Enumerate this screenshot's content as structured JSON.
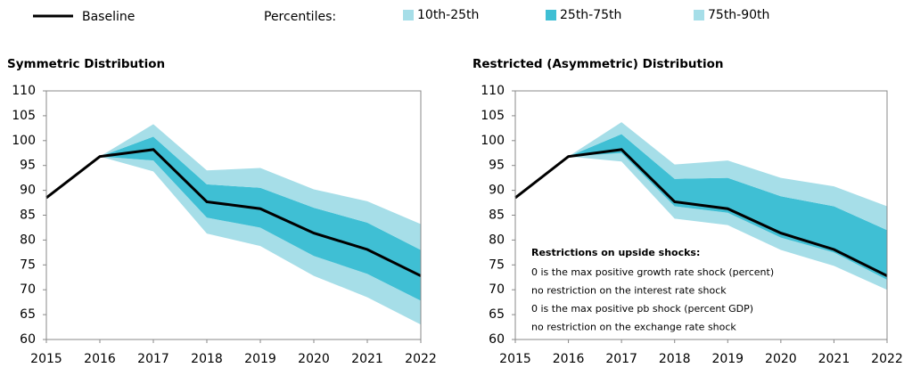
{
  "chart_data": [
    {
      "type": "fan",
      "title": "Symmetric Distribution",
      "legend_group_label": "Percentiles:",
      "x": [
        2015,
        2016,
        2017,
        2018,
        2019,
        2020,
        2021,
        2022
      ],
      "xlim": [
        2015,
        2022
      ],
      "xticks": [
        2015,
        2016,
        2017,
        2018,
        2019,
        2020,
        2021,
        2022
      ],
      "ylim": [
        60,
        110
      ],
      "yticks": [
        60,
        65,
        70,
        75,
        80,
        85,
        90,
        95,
        100,
        105,
        110
      ],
      "series": [
        {
          "name": "Baseline",
          "color": "#000000",
          "values": [
            88.5,
            96.8,
            98.2,
            87.7,
            86.3,
            81.4,
            78.1,
            72.8
          ]
        },
        {
          "name": "10th-25th",
          "color": "#a6dee8",
          "lower": [
            null,
            96.8,
            93.8,
            81.3,
            78.8,
            72.8,
            68.5,
            63
          ],
          "upper": [
            null,
            96.8,
            96,
            84.5,
            82.5,
            76.8,
            73.2,
            67.8
          ]
        },
        {
          "name": "25th-75th",
          "color": "#3fbfd4",
          "lower": [
            null,
            96.8,
            96,
            84.5,
            82.5,
            76.8,
            73.2,
            67.8
          ],
          "upper": [
            null,
            96.8,
            100.8,
            91.2,
            90.5,
            86.5,
            83.5,
            78
          ]
        },
        {
          "name": "75th-90th",
          "color": "#a6dee8",
          "lower": [
            null,
            96.8,
            100.8,
            91.2,
            90.5,
            86.5,
            83.5,
            78
          ],
          "upper": [
            null,
            96.8,
            103.3,
            94,
            94.5,
            90.2,
            87.8,
            83.2
          ]
        }
      ]
    },
    {
      "type": "fan",
      "title": "Restricted (Asymmetric) Distribution",
      "x": [
        2015,
        2016,
        2017,
        2018,
        2019,
        2020,
        2021,
        2022
      ],
      "xlim": [
        2015,
        2022
      ],
      "xticks": [
        2015,
        2016,
        2017,
        2018,
        2019,
        2020,
        2021,
        2022
      ],
      "ylim": [
        60,
        110
      ],
      "yticks": [
        60,
        65,
        70,
        75,
        80,
        85,
        90,
        95,
        100,
        105,
        110
      ],
      "annotation_title": "Restrictions on upside shocks:",
      "annotations": [
        "0 is the max positive growth rate shock (percent)",
        "no restriction on the interest rate shock",
        "0 is the max positive pb shock (percent GDP)",
        "no restriction on the exchange rate shock"
      ],
      "series": [
        {
          "name": "Baseline",
          "color": "#000000",
          "values": [
            88.5,
            96.8,
            98.2,
            87.7,
            86.3,
            81.4,
            78.1,
            72.8
          ]
        },
        {
          "name": "10th-25th",
          "color": "#a6dee8",
          "lower": [
            null,
            96.8,
            95.8,
            84.3,
            83,
            78,
            74.8,
            70
          ],
          "upper": [
            null,
            96.8,
            97.5,
            86.8,
            85.5,
            80.5,
            77.5,
            72
          ]
        },
        {
          "name": "25th-75th",
          "color": "#3fbfd4",
          "lower": [
            null,
            96.8,
            97.5,
            86.8,
            85.5,
            80.5,
            77.5,
            72
          ],
          "upper": [
            null,
            96.8,
            101.3,
            92.3,
            92.5,
            88.8,
            86.8,
            82
          ]
        },
        {
          "name": "75th-90th",
          "color": "#a6dee8",
          "lower": [
            null,
            96.8,
            101.3,
            92.3,
            92.5,
            88.8,
            86.8,
            82
          ],
          "upper": [
            null,
            96.8,
            103.7,
            95.2,
            96,
            92.5,
            90.8,
            86.8
          ]
        }
      ]
    }
  ]
}
